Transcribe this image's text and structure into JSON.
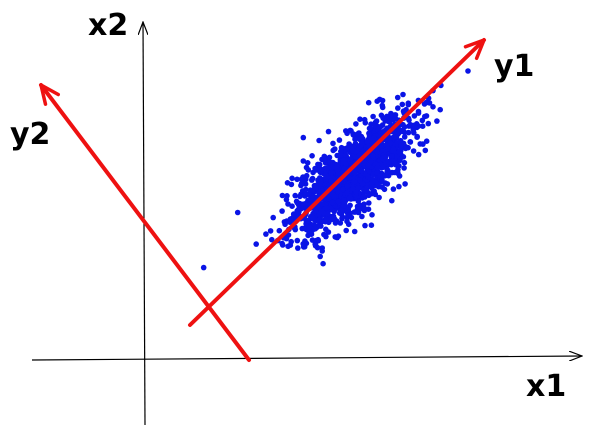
{
  "labels": {
    "x1": "x1",
    "x2": "x2",
    "y1": "y1",
    "y2": "y2"
  },
  "colors": {
    "axes": "#000000",
    "principal_axes": "#ee1111",
    "points": "#0a14e6",
    "background": "#ffffff"
  },
  "scatter": {
    "shape": "elongated elliptical cloud",
    "orientation": "along y1",
    "seed": 7
  }
}
